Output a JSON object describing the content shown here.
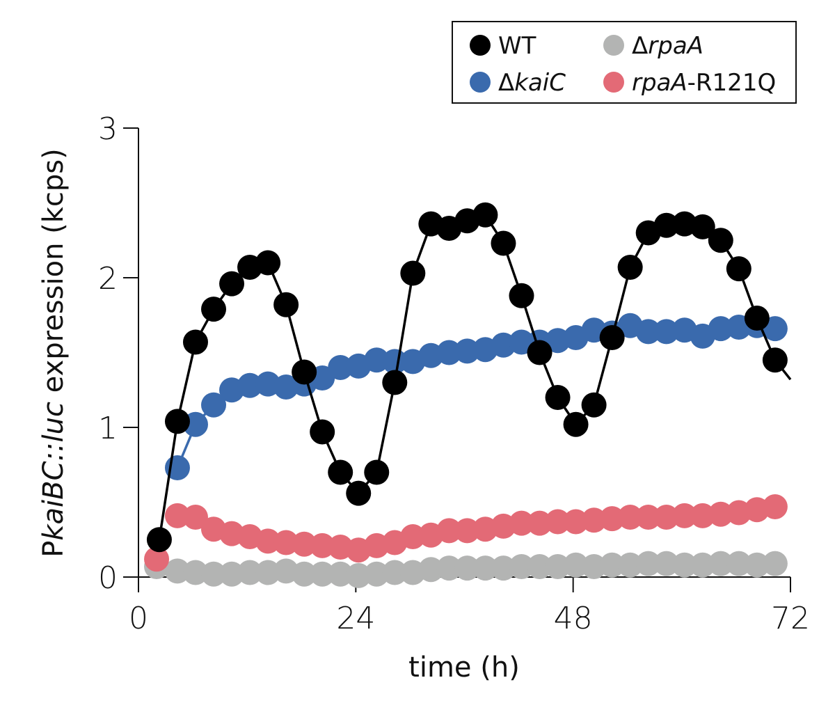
{
  "chart_data": {
    "type": "line",
    "title": "",
    "xlabel": "time (h)",
    "ylabel": {
      "prefix": "P",
      "italic_gene": "kaiBC::luc",
      "suffix": " expression (kcps)"
    },
    "xlim": [
      0,
      72
    ],
    "ylim": [
      0,
      3
    ],
    "xticks": [
      0,
      24,
      48,
      72
    ],
    "yticks": [
      0,
      1,
      2,
      3
    ],
    "grid": false,
    "legend_position": "top-right",
    "series": [
      {
        "name": "WT",
        "legend": {
          "delta": "",
          "italic": "",
          "plain": "WT"
        },
        "color": "#000000",
        "line": true,
        "x": [
          2.3,
          4.3,
          6.3,
          8.3,
          10.3,
          12.3,
          14.3,
          16.3,
          18.3,
          20.3,
          22.3,
          24.3,
          26.3,
          28.3,
          30.3,
          32.3,
          34.3,
          36.3,
          38.3,
          40.3,
          42.3,
          44.3,
          46.3,
          48.3,
          50.3,
          52.3,
          54.3,
          56.3,
          58.3,
          60.3,
          62.3,
          64.3,
          66.3,
          68.3,
          70.3
        ],
        "y": [
          0.25,
          1.04,
          1.57,
          1.79,
          1.96,
          2.07,
          2.1,
          1.82,
          1.37,
          0.97,
          0.7,
          0.56,
          0.7,
          1.3,
          2.03,
          2.36,
          2.33,
          2.38,
          2.42,
          2.23,
          1.88,
          1.5,
          1.2,
          1.02,
          1.15,
          1.6,
          2.07,
          2.3,
          2.35,
          2.36,
          2.34,
          2.25,
          2.06,
          1.73,
          1.45
        ],
        "line_end": [
          72,
          1.32
        ]
      },
      {
        "name": "ΔkaiC",
        "legend": {
          "delta": "Δ",
          "italic": "kaiC",
          "plain": ""
        },
        "color": "#3a6aad",
        "line": true,
        "x": [
          4.3,
          6.3,
          8.3,
          10.3,
          12.3,
          14.3,
          16.3,
          18.3,
          20.3,
          22.3,
          24.3,
          26.3,
          28.3,
          30.3,
          32.3,
          34.3,
          36.3,
          38.3,
          40.3,
          42.3,
          44.3,
          46.3,
          48.3,
          50.3,
          52.3,
          54.3,
          56.3,
          58.3,
          60.3,
          62.3,
          64.3,
          66.3,
          68.3,
          70.3
        ],
        "y": [
          0.73,
          1.02,
          1.15,
          1.25,
          1.28,
          1.29,
          1.27,
          1.29,
          1.33,
          1.4,
          1.41,
          1.45,
          1.44,
          1.44,
          1.48,
          1.5,
          1.51,
          1.52,
          1.55,
          1.57,
          1.57,
          1.58,
          1.6,
          1.65,
          1.63,
          1.68,
          1.64,
          1.64,
          1.65,
          1.61,
          1.66,
          1.67,
          1.68,
          1.66
        ]
      },
      {
        "name": "ΔrpaA",
        "legend": {
          "delta": "Δ",
          "italic": "rpaA",
          "plain": ""
        },
        "color": "#b3b4b3",
        "line": false,
        "x": [
          2.0,
          4.3,
          6.3,
          8.3,
          10.3,
          12.3,
          14.3,
          16.3,
          18.3,
          20.3,
          22.3,
          24.3,
          26.3,
          28.3,
          30.3,
          32.3,
          34.3,
          36.3,
          38.3,
          40.3,
          42.3,
          44.3,
          46.3,
          48.3,
          50.3,
          52.3,
          54.3,
          56.3,
          58.3,
          60.3,
          62.3,
          64.3,
          66.3,
          68.3,
          70.3
        ],
        "y": [
          0.07,
          0.04,
          0.03,
          0.02,
          0.02,
          0.03,
          0.03,
          0.04,
          0.02,
          0.02,
          0.02,
          0.01,
          0.02,
          0.03,
          0.03,
          0.05,
          0.06,
          0.06,
          0.06,
          0.06,
          0.07,
          0.07,
          0.07,
          0.08,
          0.07,
          0.08,
          0.08,
          0.09,
          0.09,
          0.08,
          0.08,
          0.09,
          0.09,
          0.08,
          0.09
        ]
      },
      {
        "name": "rpaA-R121Q",
        "legend": {
          "delta": "",
          "italic": "rpaA",
          "plain": "-R121Q"
        },
        "color": "#e36a76",
        "line": false,
        "x": [
          2.0,
          4.3,
          6.3,
          8.3,
          10.3,
          12.3,
          14.3,
          16.3,
          18.3,
          20.3,
          22.3,
          24.3,
          26.3,
          28.3,
          30.3,
          32.3,
          34.3,
          36.3,
          38.3,
          40.3,
          42.3,
          44.3,
          46.3,
          48.3,
          50.3,
          52.3,
          54.3,
          56.3,
          58.3,
          60.3,
          62.3,
          64.3,
          66.3,
          68.3,
          70.3
        ],
        "y": [
          0.12,
          0.41,
          0.4,
          0.32,
          0.29,
          0.27,
          0.24,
          0.23,
          0.22,
          0.21,
          0.2,
          0.18,
          0.21,
          0.23,
          0.27,
          0.28,
          0.31,
          0.31,
          0.32,
          0.34,
          0.36,
          0.36,
          0.37,
          0.37,
          0.38,
          0.39,
          0.4,
          0.4,
          0.4,
          0.41,
          0.41,
          0.42,
          0.43,
          0.45,
          0.47
        ]
      }
    ]
  }
}
